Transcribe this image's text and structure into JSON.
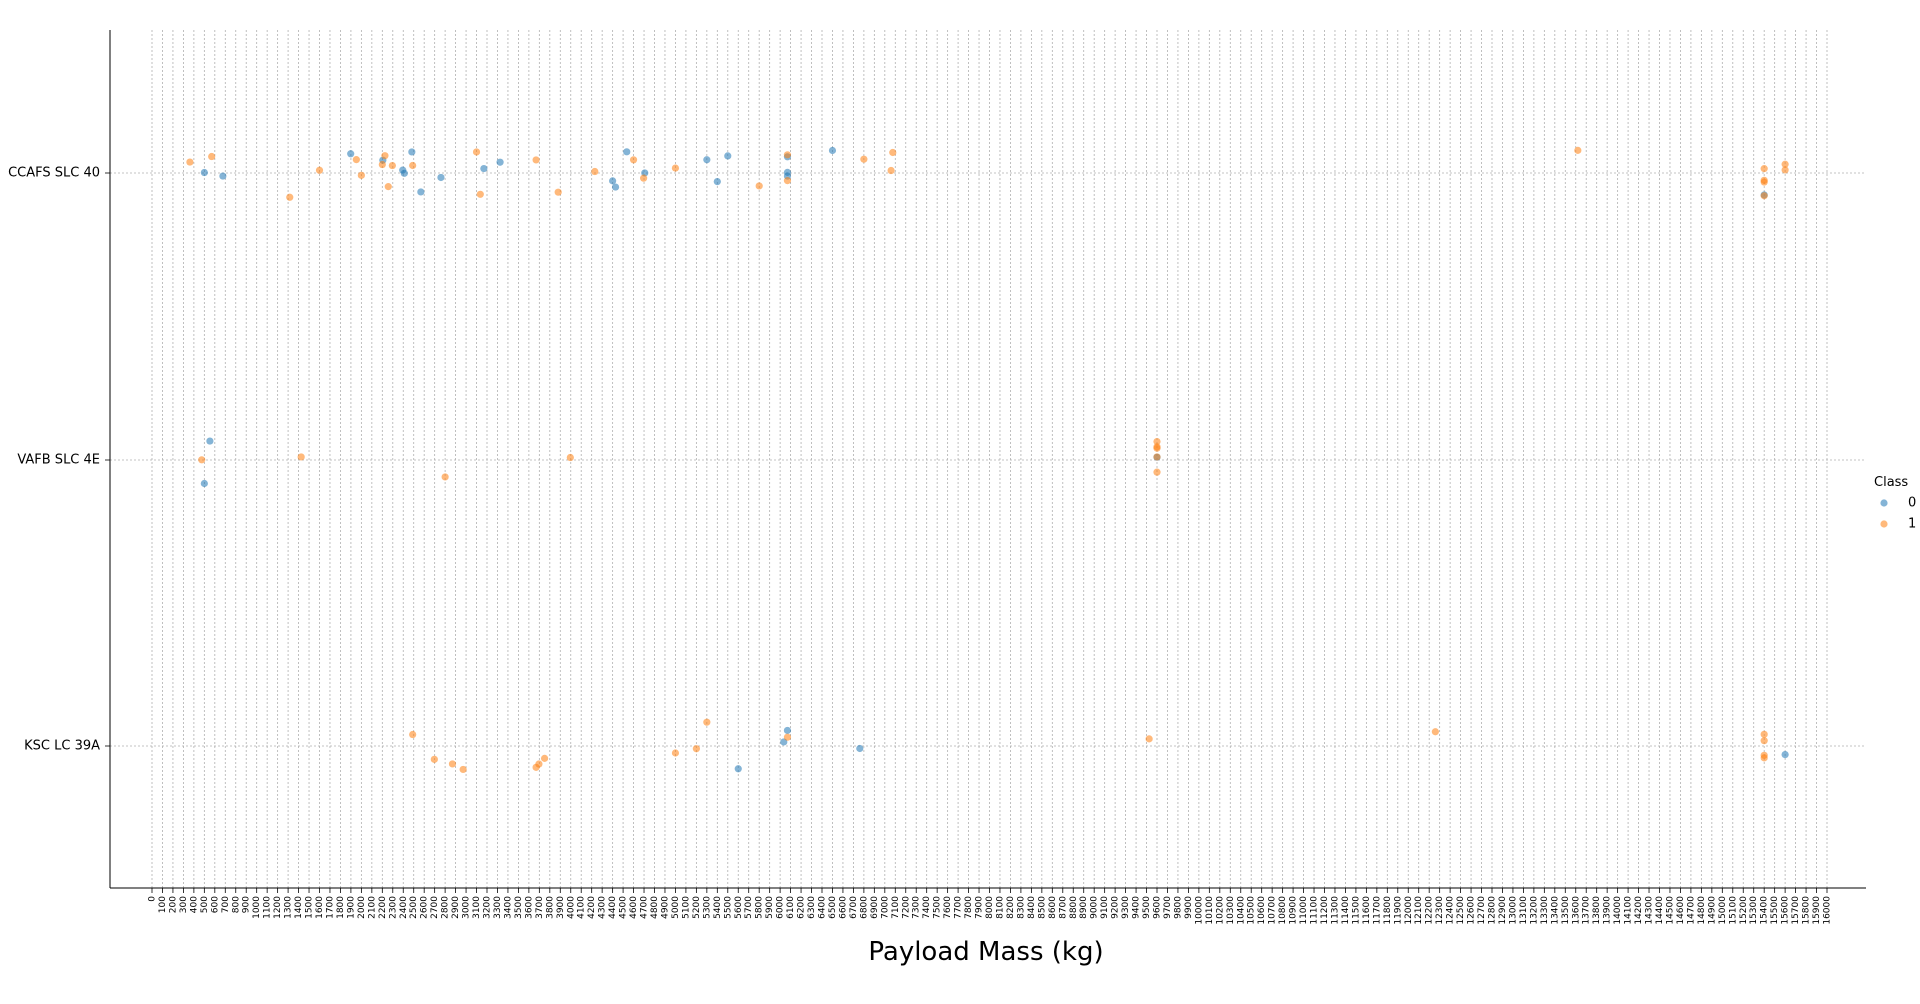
{
  "chart_data": {
    "type": "scatter",
    "title": "",
    "xlabel": "Payload Mass (kg)",
    "ylabel": "",
    "x_ticks": [
      0,
      100,
      200,
      300,
      400,
      500,
      600,
      700,
      800,
      900,
      1000,
      1100,
      1200,
      1300,
      1400,
      1500,
      1600,
      1700,
      1800,
      1900,
      2000,
      2100,
      2200,
      2300,
      2400,
      2500,
      2600,
      2700,
      2800,
      2900,
      3000,
      3100,
      3200,
      3300,
      3400,
      3500,
      3600,
      3700,
      3800,
      3900,
      4000,
      4100,
      4200,
      4300,
      4400,
      4500,
      4600,
      4700,
      4800,
      4900,
      5000,
      5100,
      5200,
      5300,
      5400,
      5500,
      5600,
      5700,
      5800,
      5900,
      6000,
      6100,
      6200,
      6300,
      6400,
      6500,
      6600,
      6700,
      6800,
      6900,
      7000,
      7100,
      7200,
      7300,
      7400,
      7500,
      7600,
      7700,
      7800,
      7900,
      8000,
      8100,
      8200,
      8300,
      8400,
      8500,
      8600,
      8700,
      8800,
      8900,
      9000,
      9100,
      9200,
      9300,
      9400,
      9500,
      9600,
      9700,
      9800,
      9900,
      10000,
      10100,
      10200,
      10300,
      10400,
      10500,
      10600,
      10700,
      10800,
      10900,
      11000,
      11100,
      11200,
      11300,
      11400,
      11500,
      11600,
      11700,
      11800,
      11900,
      12000,
      12100,
      12200,
      12300,
      12400,
      12500,
      12600,
      12700,
      12800,
      12900,
      13000,
      13100,
      13200,
      13300,
      13400,
      13500,
      13600,
      13700,
      13800,
      13900,
      14000,
      14100,
      14200,
      14300,
      14400,
      14500,
      14600,
      14700,
      14800,
      14900,
      15000,
      15100,
      15200,
      15300,
      15400,
      15500,
      15600,
      15700,
      15800,
      15900,
      16000
    ],
    "categories": [
      "CCAFS SLC 40",
      "VAFB SLC 4E",
      "KSC LC 39A"
    ],
    "grid": true,
    "legend": {
      "title": "Class",
      "placement": "right"
    },
    "series": [
      {
        "name": "0",
        "color": "#1f77b4",
        "points": [
          {
            "x": 500,
            "y": "CCAFS SLC 40"
          },
          {
            "x": 677,
            "y": "CCAFS SLC 40"
          },
          {
            "x": 1898,
            "y": "CCAFS SLC 40"
          },
          {
            "x": 2205,
            "y": "CCAFS SLC 40"
          },
          {
            "x": 2395,
            "y": "CCAFS SLC 40"
          },
          {
            "x": 2410,
            "y": "CCAFS SLC 40"
          },
          {
            "x": 2482,
            "y": "CCAFS SLC 40"
          },
          {
            "x": 2568,
            "y": "CCAFS SLC 40"
          },
          {
            "x": 2760,
            "y": "CCAFS SLC 40"
          },
          {
            "x": 3170,
            "y": "CCAFS SLC 40"
          },
          {
            "x": 3325,
            "y": "CCAFS SLC 40"
          },
          {
            "x": 4428,
            "y": "CCAFS SLC 40"
          },
          {
            "x": 4400,
            "y": "CCAFS SLC 40"
          },
          {
            "x": 4535,
            "y": "CCAFS SLC 40"
          },
          {
            "x": 4707,
            "y": "CCAFS SLC 40"
          },
          {
            "x": 5300,
            "y": "CCAFS SLC 40"
          },
          {
            "x": 5400,
            "y": "CCAFS SLC 40"
          },
          {
            "x": 5500,
            "y": "CCAFS SLC 40"
          },
          {
            "x": 6070,
            "y": "CCAFS SLC 40"
          },
          {
            "x": 6070,
            "y": "CCAFS SLC 40"
          },
          {
            "x": 6070,
            "y": "CCAFS SLC 40"
          },
          {
            "x": 6500,
            "y": "CCAFS SLC 40"
          },
          {
            "x": 15400,
            "y": "CCAFS SLC 40"
          },
          {
            "x": 500,
            "y": "VAFB SLC 4E"
          },
          {
            "x": 553,
            "y": "VAFB SLC 4E"
          },
          {
            "x": 9600,
            "y": "VAFB SLC 4E"
          },
          {
            "x": 5600,
            "y": "KSC LC 39A"
          },
          {
            "x": 6070,
            "y": "KSC LC 39A"
          },
          {
            "x": 6035,
            "y": "KSC LC 39A"
          },
          {
            "x": 6761,
            "y": "KSC LC 39A"
          },
          {
            "x": 15600,
            "y": "KSC LC 39A"
          }
        ]
      },
      {
        "name": "1",
        "color": "#ff7f0e",
        "points": [
          {
            "x": 362,
            "y": "CCAFS SLC 40"
          },
          {
            "x": 570,
            "y": "CCAFS SLC 40"
          },
          {
            "x": 1316,
            "y": "CCAFS SLC 40"
          },
          {
            "x": 1600,
            "y": "CCAFS SLC 40"
          },
          {
            "x": 1952,
            "y": "CCAFS SLC 40"
          },
          {
            "x": 2000,
            "y": "CCAFS SLC 40"
          },
          {
            "x": 2200,
            "y": "CCAFS SLC 40"
          },
          {
            "x": 2225,
            "y": "CCAFS SLC 40"
          },
          {
            "x": 2257,
            "y": "CCAFS SLC 40"
          },
          {
            "x": 2296,
            "y": "CCAFS SLC 40"
          },
          {
            "x": 2490,
            "y": "CCAFS SLC 40"
          },
          {
            "x": 3100,
            "y": "CCAFS SLC 40"
          },
          {
            "x": 3136,
            "y": "CCAFS SLC 40"
          },
          {
            "x": 3669,
            "y": "CCAFS SLC 40"
          },
          {
            "x": 3880,
            "y": "CCAFS SLC 40"
          },
          {
            "x": 4230,
            "y": "CCAFS SLC 40"
          },
          {
            "x": 4600,
            "y": "CCAFS SLC 40"
          },
          {
            "x": 4696,
            "y": "CCAFS SLC 40"
          },
          {
            "x": 5000,
            "y": "CCAFS SLC 40"
          },
          {
            "x": 5800,
            "y": "CCAFS SLC 40"
          },
          {
            "x": 6070,
            "y": "CCAFS SLC 40"
          },
          {
            "x": 6070,
            "y": "CCAFS SLC 40"
          },
          {
            "x": 6800,
            "y": "CCAFS SLC 40"
          },
          {
            "x": 7060,
            "y": "CCAFS SLC 40"
          },
          {
            "x": 7076,
            "y": "CCAFS SLC 40"
          },
          {
            "x": 13620,
            "y": "CCAFS SLC 40"
          },
          {
            "x": 15400,
            "y": "CCAFS SLC 40"
          },
          {
            "x": 15400,
            "y": "CCAFS SLC 40"
          },
          {
            "x": 15400,
            "y": "CCAFS SLC 40"
          },
          {
            "x": 15400,
            "y": "CCAFS SLC 40"
          },
          {
            "x": 15600,
            "y": "CCAFS SLC 40"
          },
          {
            "x": 15600,
            "y": "CCAFS SLC 40"
          },
          {
            "x": 475,
            "y": "VAFB SLC 4E"
          },
          {
            "x": 1425,
            "y": "VAFB SLC 4E"
          },
          {
            "x": 2800,
            "y": "VAFB SLC 4E"
          },
          {
            "x": 3996,
            "y": "VAFB SLC 4E"
          },
          {
            "x": 9600,
            "y": "VAFB SLC 4E"
          },
          {
            "x": 9600,
            "y": "VAFB SLC 4E"
          },
          {
            "x": 9600,
            "y": "VAFB SLC 4E"
          },
          {
            "x": 9600,
            "y": "VAFB SLC 4E"
          },
          {
            "x": 9600,
            "y": "VAFB SLC 4E"
          },
          {
            "x": 2490,
            "y": "KSC LC 39A"
          },
          {
            "x": 2697,
            "y": "KSC LC 39A"
          },
          {
            "x": 2870,
            "y": "KSC LC 39A"
          },
          {
            "x": 2972,
            "y": "KSC LC 39A"
          },
          {
            "x": 3669,
            "y": "KSC LC 39A"
          },
          {
            "x": 3696,
            "y": "KSC LC 39A"
          },
          {
            "x": 3750,
            "y": "KSC LC 39A"
          },
          {
            "x": 5000,
            "y": "KSC LC 39A"
          },
          {
            "x": 5200,
            "y": "KSC LC 39A"
          },
          {
            "x": 5300,
            "y": "KSC LC 39A"
          },
          {
            "x": 6070,
            "y": "KSC LC 39A"
          },
          {
            "x": 9525,
            "y": "KSC LC 39A"
          },
          {
            "x": 12259,
            "y": "KSC LC 39A"
          },
          {
            "x": 15400,
            "y": "KSC LC 39A"
          },
          {
            "x": 15400,
            "y": "KSC LC 39A"
          },
          {
            "x": 15400,
            "y": "KSC LC 39A"
          },
          {
            "x": 15400,
            "y": "KSC LC 39A"
          }
        ]
      }
    ]
  }
}
